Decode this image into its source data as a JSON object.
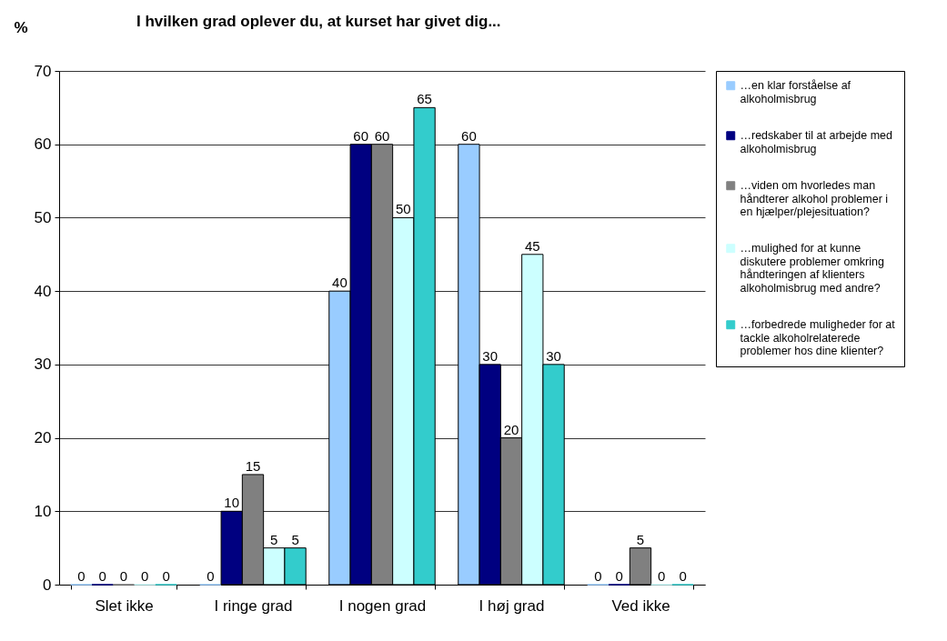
{
  "chart_data": {
    "type": "bar",
    "title": "I hvilken grad oplever du, at kurset har givet dig...",
    "ylabel": "%",
    "categories": [
      "Slet ikke",
      "I ringe grad",
      "I nogen grad",
      "I høj grad",
      "Ved ikke"
    ],
    "series": [
      {
        "name": "…en klar forståelse af alkoholmisbrug",
        "color": "#99ccff",
        "values": [
          0,
          0,
          40,
          60,
          0
        ]
      },
      {
        "name": "…redskaber til at arbejde med alkoholmisbrug",
        "color": "#000080",
        "values": [
          0,
          10,
          60,
          30,
          0
        ]
      },
      {
        "name": "…viden om hvorledes man håndterer alkohol problemer i en hjælper/plejesituation?",
        "color": "#808080",
        "values": [
          0,
          15,
          60,
          20,
          5
        ]
      },
      {
        "name": "…mulighed for at kunne diskutere problemer omkring håndteringen af klienters alkoholmisbrug med andre?",
        "color": "#ccffff",
        "values": [
          0,
          5,
          50,
          45,
          0
        ]
      },
      {
        "name": "…forbedrede muligheder for at tackle alkoholrelaterede problemer hos dine klienter?",
        "color": "#33cccc",
        "values": [
          0,
          5,
          65,
          30,
          0
        ]
      }
    ],
    "ylim": [
      0,
      70
    ],
    "yticks": [
      0,
      10,
      20,
      30,
      40,
      50,
      60,
      70
    ],
    "grid": "y",
    "legend": "right",
    "data_labels": true
  }
}
